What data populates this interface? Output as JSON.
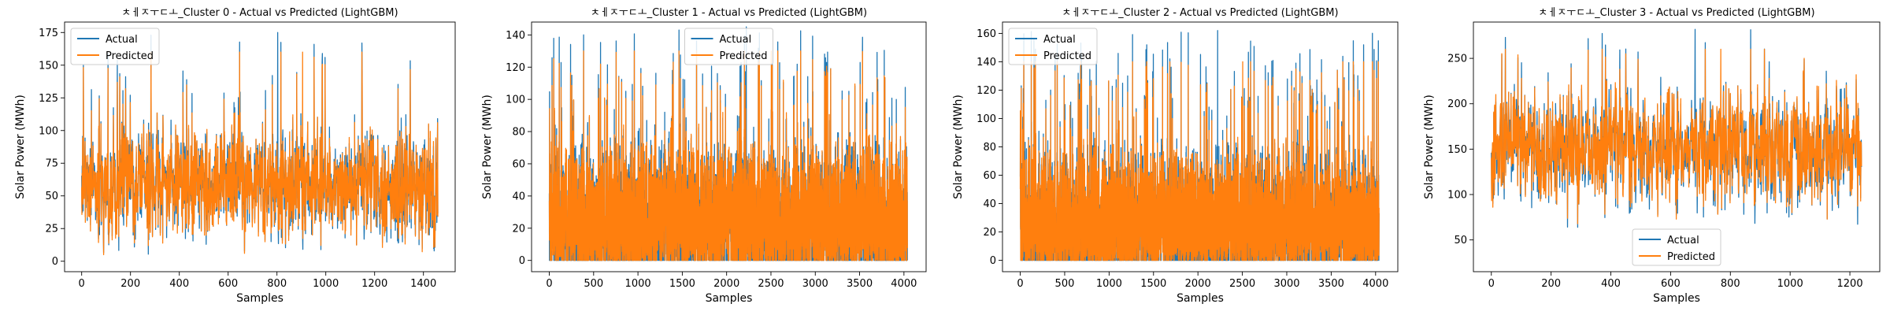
{
  "chart_data": [
    {
      "type": "line",
      "title": "ㅊㅔㅈㅜㄷㅗ_Cluster 0 - Actual vs Predicted (LightGBM)",
      "xlabel": "Samples",
      "ylabel": "Solar Power (MWh)",
      "xlim": [
        -70,
        1530
      ],
      "ylim": [
        -8,
        183
      ],
      "x_ticks": [
        0,
        200,
        400,
        600,
        800,
        1000,
        1200,
        1400
      ],
      "y_ticks": [
        0,
        25,
        50,
        75,
        100,
        125,
        150,
        175
      ],
      "x_count": 1460,
      "legend_position": "top-left",
      "series": [
        {
          "name": "Actual",
          "color": "#1f77b4",
          "mean": 58,
          "min": 3,
          "max": 175,
          "spread": 26
        },
        {
          "name": "Predicted",
          "color": "#ff7f0e",
          "mean": 58,
          "min": 5,
          "max": 160,
          "spread": 22
        }
      ]
    },
    {
      "type": "line",
      "title": "ㅊㅔㅈㅜㄷㅗ_Cluster 1 - Actual vs Predicted (LightGBM)",
      "xlabel": "Samples",
      "ylabel": "Solar Power (MWh)",
      "xlim": [
        -200,
        4250
      ],
      "ylim": [
        -7,
        148
      ],
      "x_ticks": [
        0,
        500,
        1000,
        1500,
        2000,
        2500,
        3000,
        3500,
        4000
      ],
      "y_ticks": [
        0,
        20,
        40,
        60,
        80,
        100,
        120,
        140
      ],
      "x_count": 4040,
      "legend_position": "top-center",
      "series": [
        {
          "name": "Actual",
          "color": "#1f77b4",
          "mean": 30,
          "min": 0,
          "max": 145,
          "spread": 28
        },
        {
          "name": "Predicted",
          "color": "#ff7f0e",
          "mean": 28,
          "min": 0,
          "max": 130,
          "spread": 25
        }
      ]
    },
    {
      "type": "line",
      "title": "ㅊㅔㅈㅜㄷㅗ_Cluster 2 - Actual vs Predicted (LightGBM)",
      "xlabel": "Samples",
      "ylabel": "Solar Power (MWh)",
      "xlim": [
        -200,
        4250
      ],
      "ylim": [
        -8,
        168
      ],
      "x_ticks": [
        0,
        500,
        1000,
        1500,
        2000,
        2500,
        3000,
        3500,
        4000
      ],
      "y_ticks": [
        0,
        20,
        40,
        60,
        80,
        100,
        120,
        140,
        160
      ],
      "x_count": 4040,
      "legend_position": "top-left",
      "series": [
        {
          "name": "Actual",
          "color": "#1f77b4",
          "mean": 30,
          "min": 0,
          "max": 162,
          "spread": 30
        },
        {
          "name": "Predicted",
          "color": "#ff7f0e",
          "mean": 28,
          "min": 0,
          "max": 140,
          "spread": 26
        }
      ]
    },
    {
      "type": "line",
      "title": "ㅊㅔㅈㅜㄷㅗ_Cluster 3 - Actual vs Predicted (LightGBM)",
      "xlabel": "Samples",
      "ylabel": "Solar Power (MWh)",
      "xlim": [
        -60,
        1300
      ],
      "ylim": [
        15,
        290
      ],
      "x_ticks": [
        0,
        200,
        400,
        600,
        800,
        1000,
        1200
      ],
      "y_ticks": [
        50,
        100,
        150,
        200,
        250
      ],
      "x_count": 1240,
      "legend_position": "bottom-center",
      "series": [
        {
          "name": "Actual",
          "color": "#1f77b4",
          "mean": 150,
          "min": 22,
          "max": 282,
          "spread": 40
        },
        {
          "name": "Predicted",
          "color": "#ff7f0e",
          "mean": 150,
          "min": 55,
          "max": 260,
          "spread": 35
        }
      ]
    }
  ]
}
